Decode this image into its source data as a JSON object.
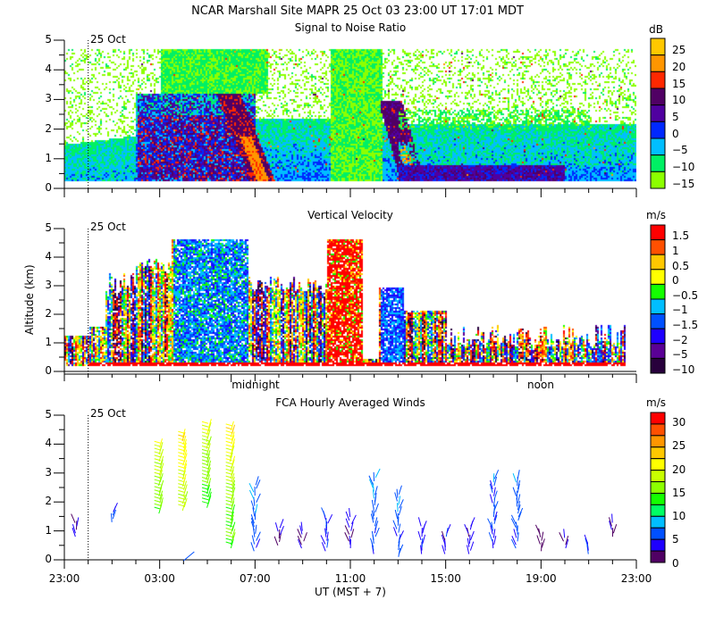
{
  "header": {
    "title": "NCAR Marshall Site   MAPR 25 Oct 03   23:00 UT   17:01   MDT"
  },
  "chart_data": [
    {
      "type": "heatmap",
      "title": "Signal to Noise Ratio",
      "xlabel": "UT  (MST + 7)",
      "ylabel": "Altitude (km)",
      "x_ticks": [
        "23:00",
        "03:00",
        "07:00",
        "11:00",
        "15:00",
        "19:00",
        "23:00"
      ],
      "y_ticks": [
        "0",
        "1",
        "2",
        "3",
        "4",
        "5"
      ],
      "xlim": [
        "23:00",
        "23:00"
      ],
      "ylim": [
        0,
        5
      ],
      "date_marker": "25 Oct",
      "colorbar": {
        "unit": "dB",
        "levels": [
          -15,
          -10,
          -5,
          0,
          5,
          10,
          15,
          20,
          25
        ],
        "labels": [
          "25",
          "20",
          "15",
          "10",
          "5",
          "0",
          "-5",
          "-10",
          "-15"
        ],
        "colors": [
          "#ffc800",
          "#ff9600",
          "#ff2800",
          "#500064",
          "#5000a0",
          "#0028ff",
          "#00beff",
          "#00f064",
          "#8cff00"
        ]
      }
    },
    {
      "type": "heatmap",
      "title": "Vertical Velocity",
      "ylabel": "Altitude (km)",
      "y_ticks": [
        "0",
        "1",
        "2",
        "3",
        "4",
        "5"
      ],
      "ylim": [
        0,
        5
      ],
      "date_marker": "25 Oct",
      "local_time_labels": [
        "midnight",
        "noon"
      ],
      "colorbar": {
        "unit": "m/s",
        "levels": [
          -10,
          -5,
          -2,
          -1.5,
          -1,
          -0.5,
          0,
          0.5,
          1,
          1.5
        ],
        "labels": [
          "1.5",
          "1",
          "0.5",
          "0",
          "-0.5",
          "-1",
          "-1.5",
          "-2",
          "-5",
          "-10"
        ],
        "colors": [
          "#ff0000",
          "#ff5000",
          "#ffc800",
          "#ffff00",
          "#14ff00",
          "#00beff",
          "#0050ff",
          "#1e00ff",
          "#5a0096",
          "#28003c"
        ]
      }
    },
    {
      "type": "scatter",
      "title": "FCA Hourly Averaged Winds",
      "ylabel": "Altitude (km)",
      "y_ticks": [
        "0",
        "1",
        "2",
        "3",
        "4",
        "5"
      ],
      "ylim": [
        0,
        5
      ],
      "date_marker": "25 Oct",
      "x_ticks": [
        "23:00",
        "03:00",
        "07:00",
        "11:00",
        "15:00",
        "19:00",
        "23:00"
      ],
      "xlabel": "UT  (MST + 7)",
      "colorbar": {
        "unit": "m/s",
        "levels": [
          0,
          2.5,
          5,
          7.5,
          10,
          12.5,
          15,
          17.5,
          20,
          22.5,
          25,
          27.5,
          30
        ],
        "labels": [
          "30",
          "25",
          "20",
          "15",
          "10",
          "5",
          "0"
        ],
        "colors": [
          "#ff0000",
          "#ff5000",
          "#ff9600",
          "#ffc800",
          "#ffff00",
          "#c8ff00",
          "#8cff00",
          "#14ff00",
          "#00ff64",
          "#00beff",
          "#0050ff",
          "#1e00ff",
          "#500064"
        ]
      },
      "wind_profiles": [
        {
          "hour_ut": 23.5,
          "alt_min": 0.8,
          "alt_max": 1.3,
          "speed": 3
        },
        {
          "hour_ut": 1.0,
          "alt_min": 1.3,
          "alt_max": 1.7,
          "speed": 6
        },
        {
          "hour_ut": 3.0,
          "alt_min": 1.6,
          "alt_max": 3.9,
          "speed": 15
        },
        {
          "hour_ut": 4.0,
          "alt_min": 1.7,
          "alt_max": 4.3,
          "speed": 18
        },
        {
          "hour_ut": 5.0,
          "alt_min": 1.8,
          "alt_max": 4.6,
          "speed": 14
        },
        {
          "hour_ut": 6.0,
          "alt_min": 0.4,
          "alt_max": 4.6,
          "speed": 14
        },
        {
          "hour_ut": 7.0,
          "alt_min": 0.3,
          "alt_max": 2.6,
          "speed": 5
        },
        {
          "hour_ut": 8.0,
          "alt_min": 0.5,
          "alt_max": 1.1,
          "speed": 2
        },
        {
          "hour_ut": 9.0,
          "alt_min": 0.4,
          "alt_max": 1.0,
          "speed": 2
        },
        {
          "hour_ut": 10.0,
          "alt_min": 0.3,
          "alt_max": 1.6,
          "speed": 4
        },
        {
          "hour_ut": 11.0,
          "alt_min": 0.4,
          "alt_max": 1.5,
          "speed": 3
        },
        {
          "hour_ut": 12.0,
          "alt_min": 0.2,
          "alt_max": 2.9,
          "speed": 5
        },
        {
          "hour_ut": 13.0,
          "alt_min": 0.1,
          "alt_max": 2.3,
          "speed": 5
        },
        {
          "hour_ut": 14.0,
          "alt_min": 0.2,
          "alt_max": 1.2,
          "speed": 4
        },
        {
          "hour_ut": 15.0,
          "alt_min": 0.2,
          "alt_max": 1.0,
          "speed": 3
        },
        {
          "hour_ut": 16.0,
          "alt_min": 0.2,
          "alt_max": 1.2,
          "speed": 3
        },
        {
          "hour_ut": 17.0,
          "alt_min": 0.4,
          "alt_max": 2.9,
          "speed": 4
        },
        {
          "hour_ut": 18.0,
          "alt_min": 0.4,
          "alt_max": 2.9,
          "speed": 5
        },
        {
          "hour_ut": 19.0,
          "alt_min": 0.3,
          "alt_max": 0.9,
          "speed": 2
        },
        {
          "hour_ut": 20.0,
          "alt_min": 0.4,
          "alt_max": 0.8,
          "speed": 2
        },
        {
          "hour_ut": 21.0,
          "alt_min": 0.2,
          "alt_max": 0.6,
          "speed": 5
        },
        {
          "hour_ut": 22.0,
          "alt_min": 0.8,
          "alt_max": 1.4,
          "speed": 2
        }
      ]
    }
  ]
}
